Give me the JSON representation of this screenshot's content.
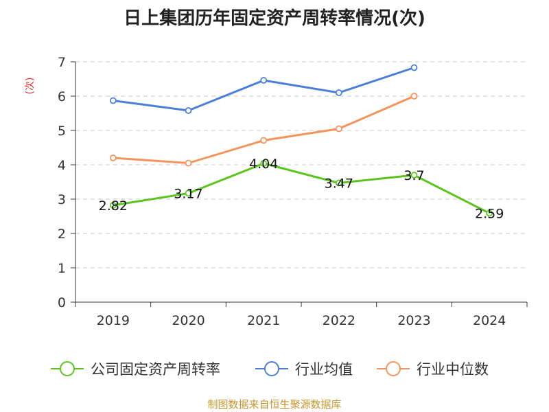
{
  "title": "日上集团历年固定资产周转率情况(次)",
  "ylabel": "(次)",
  "footer": "制图数据来自恒生聚源数据库",
  "chart_data": {
    "type": "line",
    "categories": [
      "2019",
      "2020",
      "2021",
      "2022",
      "2023",
      "2024"
    ],
    "ylim": [
      0,
      7
    ],
    "yticks": [
      0,
      1,
      2,
      3,
      4,
      5,
      6,
      7
    ],
    "grid": true,
    "legend_position": "bottom",
    "series": [
      {
        "name": "公司固定资产周转率",
        "color": "#5bc51d",
        "values": [
          2.82,
          3.17,
          4.04,
          3.47,
          3.7,
          2.59
        ],
        "labels": [
          "2.82",
          "3.17",
          "4.04",
          "3.47",
          "3.7",
          "2.59"
        ]
      },
      {
        "name": "行业均值",
        "color": "#4a7fd8",
        "values": [
          5.87,
          5.58,
          6.46,
          6.1,
          6.83,
          null
        ]
      },
      {
        "name": "行业中位数",
        "color": "#f5935a",
        "values": [
          4.2,
          4.05,
          4.71,
          5.05,
          6.0,
          null
        ]
      }
    ]
  }
}
